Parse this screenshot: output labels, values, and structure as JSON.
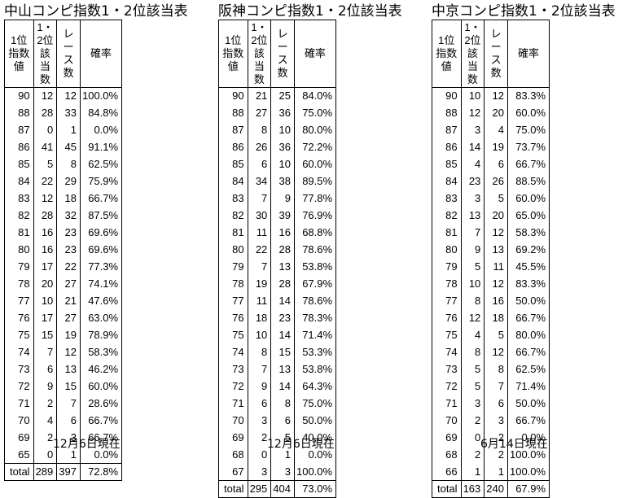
{
  "headers": {
    "col1": [
      "1位",
      "指数値"
    ],
    "col2": [
      "1・2位",
      "該当数"
    ],
    "col3": "レース数",
    "col4": "確率"
  },
  "tables": [
    {
      "title": "中山コンピ指数1・2位該当表",
      "rows": [
        [
          "90",
          "12",
          "12",
          "100.0%"
        ],
        [
          "88",
          "28",
          "33",
          "84.8%"
        ],
        [
          "87",
          "0",
          "1",
          "0.0%"
        ],
        [
          "86",
          "41",
          "45",
          "91.1%"
        ],
        [
          "85",
          "5",
          "8",
          "62.5%"
        ],
        [
          "84",
          "22",
          "29",
          "75.9%"
        ],
        [
          "83",
          "12",
          "18",
          "66.7%"
        ],
        [
          "82",
          "28",
          "32",
          "87.5%"
        ],
        [
          "81",
          "16",
          "23",
          "69.6%"
        ],
        [
          "80",
          "16",
          "23",
          "69.6%"
        ],
        [
          "79",
          "17",
          "22",
          "77.3%"
        ],
        [
          "78",
          "20",
          "27",
          "74.1%"
        ],
        [
          "77",
          "10",
          "21",
          "47.6%"
        ],
        [
          "76",
          "17",
          "27",
          "63.0%"
        ],
        [
          "75",
          "15",
          "19",
          "78.9%"
        ],
        [
          "74",
          "7",
          "12",
          "58.3%"
        ],
        [
          "73",
          "6",
          "13",
          "46.2%"
        ],
        [
          "72",
          "9",
          "15",
          "60.0%"
        ],
        [
          "71",
          "2",
          "7",
          "28.6%"
        ],
        [
          "70",
          "4",
          "6",
          "66.7%"
        ],
        [
          "69",
          "2",
          "3",
          "66.7%"
        ],
        [
          "65",
          "0",
          "1",
          "0.0%"
        ]
      ],
      "total": [
        "total",
        "289",
        "397",
        "72.8%"
      ],
      "date": "12月6日現在"
    },
    {
      "title": "阪神コンピ指数1・2位該当表",
      "rows": [
        [
          "90",
          "21",
          "25",
          "84.0%"
        ],
        [
          "88",
          "27",
          "36",
          "75.0%"
        ],
        [
          "87",
          "8",
          "10",
          "80.0%"
        ],
        [
          "86",
          "26",
          "36",
          "72.2%"
        ],
        [
          "85",
          "6",
          "10",
          "60.0%"
        ],
        [
          "84",
          "34",
          "38",
          "89.5%"
        ],
        [
          "83",
          "7",
          "9",
          "77.8%"
        ],
        [
          "82",
          "30",
          "39",
          "76.9%"
        ],
        [
          "81",
          "11",
          "16",
          "68.8%"
        ],
        [
          "80",
          "22",
          "28",
          "78.6%"
        ],
        [
          "79",
          "7",
          "13",
          "53.8%"
        ],
        [
          "78",
          "19",
          "28",
          "67.9%"
        ],
        [
          "77",
          "11",
          "14",
          "78.6%"
        ],
        [
          "76",
          "18",
          "23",
          "78.3%"
        ],
        [
          "75",
          "10",
          "14",
          "71.4%"
        ],
        [
          "74",
          "8",
          "15",
          "53.3%"
        ],
        [
          "73",
          "7",
          "13",
          "53.8%"
        ],
        [
          "72",
          "9",
          "14",
          "64.3%"
        ],
        [
          "71",
          "6",
          "8",
          "75.0%"
        ],
        [
          "70",
          "3",
          "6",
          "50.0%"
        ],
        [
          "69",
          "2",
          "5",
          "40.0%"
        ],
        [
          "68",
          "0",
          "1",
          "0.0%"
        ],
        [
          "67",
          "3",
          "3",
          "100.0%"
        ]
      ],
      "total": [
        "total",
        "295",
        "404",
        "73.0%"
      ],
      "date": "12月6日現在"
    },
    {
      "title": "中京コンピ指数1・2位該当表",
      "rows": [
        [
          "90",
          "10",
          "12",
          "83.3%"
        ],
        [
          "88",
          "12",
          "20",
          "60.0%"
        ],
        [
          "87",
          "3",
          "4",
          "75.0%"
        ],
        [
          "86",
          "14",
          "19",
          "73.7%"
        ],
        [
          "85",
          "4",
          "6",
          "66.7%"
        ],
        [
          "84",
          "23",
          "26",
          "88.5%"
        ],
        [
          "83",
          "3",
          "5",
          "60.0%"
        ],
        [
          "82",
          "13",
          "20",
          "65.0%"
        ],
        [
          "81",
          "7",
          "12",
          "58.3%"
        ],
        [
          "80",
          "9",
          "13",
          "69.2%"
        ],
        [
          "79",
          "5",
          "11",
          "45.5%"
        ],
        [
          "78",
          "10",
          "12",
          "83.3%"
        ],
        [
          "77",
          "8",
          "16",
          "50.0%"
        ],
        [
          "76",
          "12",
          "18",
          "66.7%"
        ],
        [
          "75",
          "4",
          "5",
          "80.0%"
        ],
        [
          "74",
          "8",
          "12",
          "66.7%"
        ],
        [
          "73",
          "5",
          "8",
          "62.5%"
        ],
        [
          "72",
          "5",
          "7",
          "71.4%"
        ],
        [
          "71",
          "3",
          "6",
          "50.0%"
        ],
        [
          "70",
          "2",
          "3",
          "66.7%"
        ],
        [
          "69",
          "0",
          "2",
          "0.0%"
        ],
        [
          "68",
          "2",
          "2",
          "100.0%"
        ],
        [
          "66",
          "1",
          "1",
          "100.0%"
        ]
      ],
      "total": [
        "total",
        "163",
        "240",
        "67.9%"
      ],
      "date": "6月14日現在"
    }
  ]
}
